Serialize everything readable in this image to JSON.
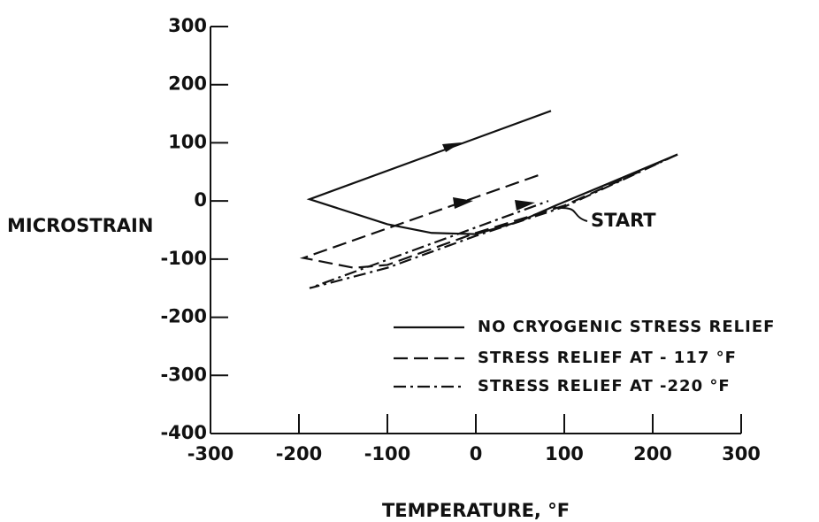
{
  "chart_data": {
    "type": "line",
    "xlabel": "TEMPERATURE, °F",
    "ylabel": "MICROSTRAIN",
    "annotation": "START",
    "xlim": [
      -300,
      300
    ],
    "xticks": [
      -300,
      -200,
      -100,
      0,
      100,
      200,
      300
    ],
    "ylim": [
      -400,
      300
    ],
    "yticks": [
      -400,
      -300,
      -200,
      -100,
      0,
      100,
      200,
      300
    ],
    "legend": "lower right",
    "series": [
      {
        "name": "NO CRYOGENIC STRESS RELIEF",
        "color": "#111111",
        "dash": "solid",
        "x": [
          228,
          150,
          90,
          50,
          0,
          -50,
          -100,
          -188,
          85
        ],
        "values": [
          80,
          30,
          -8,
          -35,
          -57,
          -55,
          -40,
          3,
          155
        ]
      },
      {
        "name": "STRESS RELIEF AT - 117 °F",
        "color": "#111111",
        "dash": "dashed",
        "x": [
          228,
          100,
          0,
          -100,
          -138,
          -195,
          74
        ],
        "values": [
          80,
          -8,
          -55,
          -110,
          -115,
          -98,
          46
        ]
      },
      {
        "name": "STRESS RELIEF AT -220 °F",
        "color": "#111111",
        "dash": "dashdot",
        "x": [
          228,
          100,
          0,
          -100,
          -188,
          82
        ],
        "values": [
          80,
          -10,
          -60,
          -115,
          -150,
          0
        ]
      }
    ]
  }
}
